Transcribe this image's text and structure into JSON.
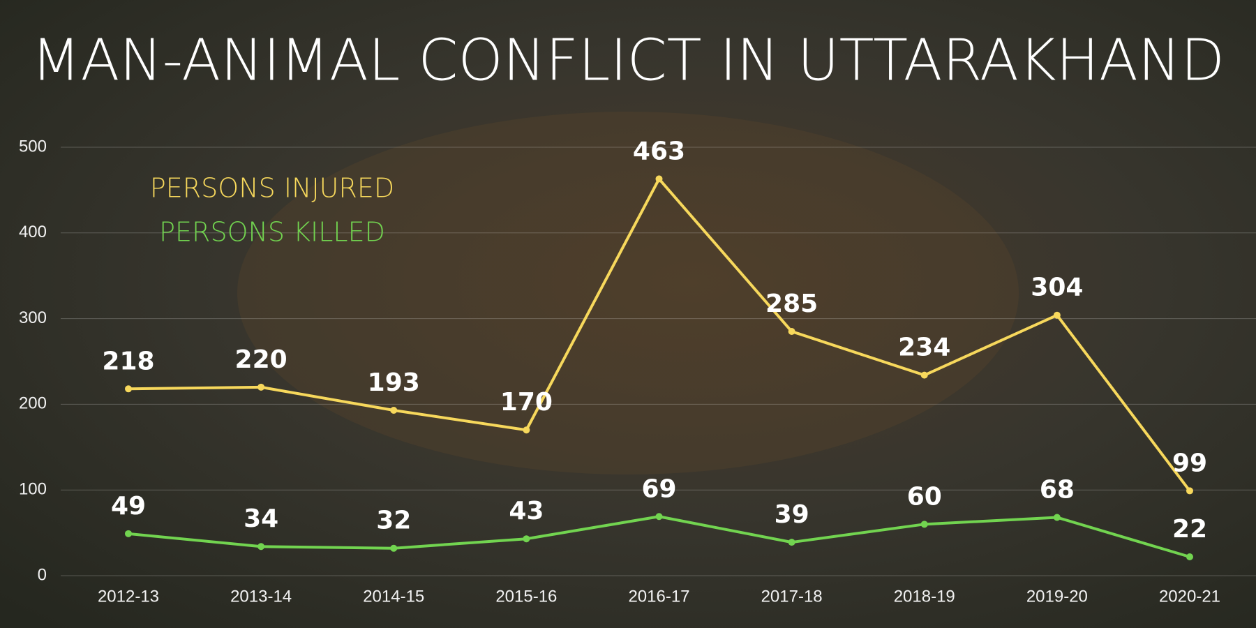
{
  "chart_data": {
    "type": "line",
    "title": "MAN-ANIMAL CONFLICT IN UTTARAKHAND",
    "categories": [
      "2012-13",
      "2013-14",
      "2014-15",
      "2015-16",
      "2016-17",
      "2017-18",
      "2018-19",
      "2019-20",
      "2020-21"
    ],
    "series": [
      {
        "name": "PERSONS INJURED",
        "color": "#f7d85c",
        "values": [
          218,
          220,
          193,
          170,
          463,
          285,
          234,
          304,
          99
        ]
      },
      {
        "name": "PERSONS KILLED",
        "color": "#72d450",
        "values": [
          49,
          34,
          32,
          43,
          69,
          39,
          60,
          68,
          22
        ]
      }
    ],
    "ylim": [
      0,
      500
    ],
    "yticks": [
      0,
      100,
      200,
      300,
      400,
      500
    ],
    "grid": true,
    "legend": "upper left"
  }
}
